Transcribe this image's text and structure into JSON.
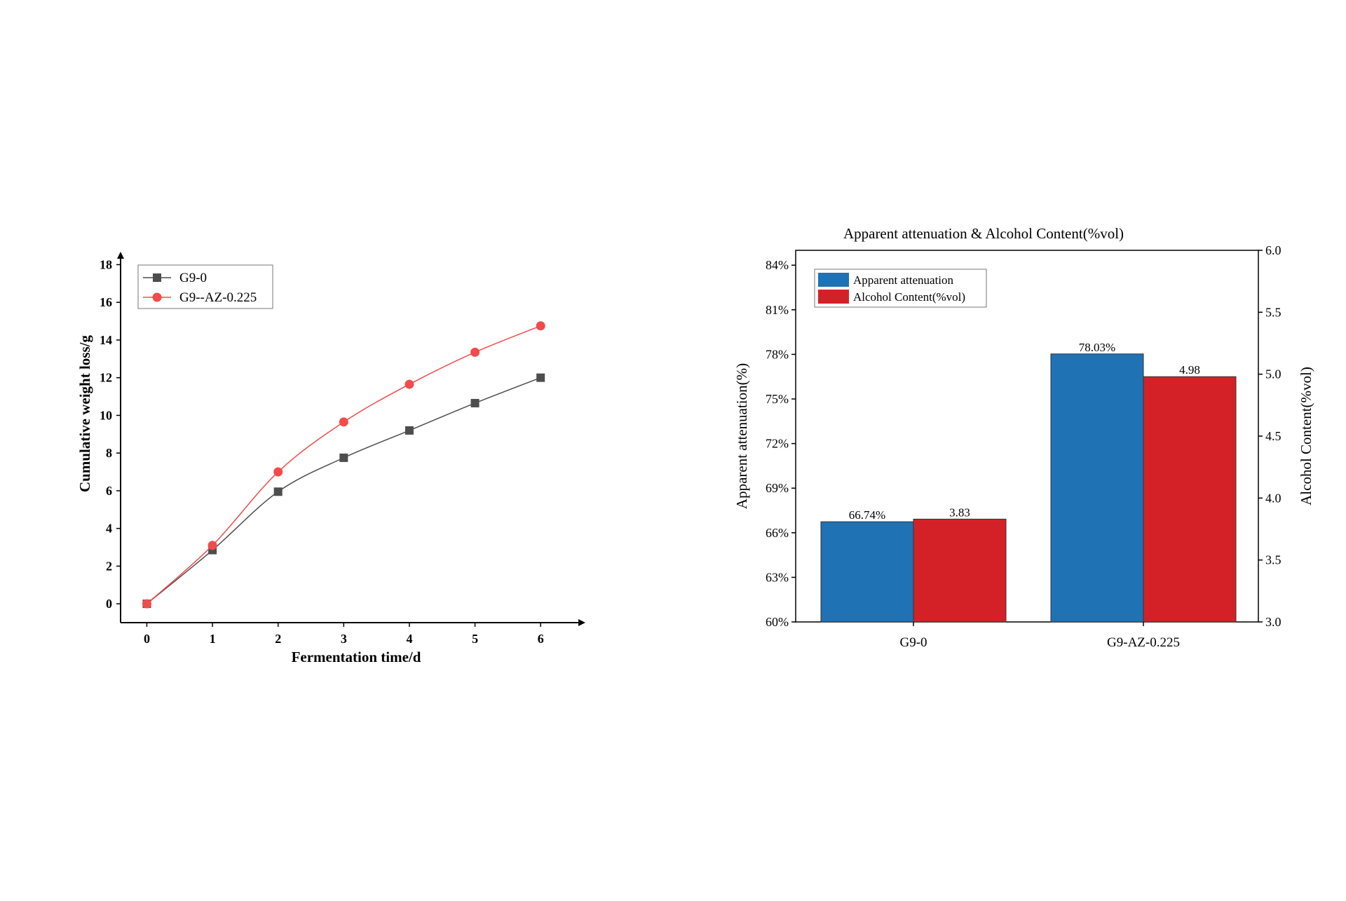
{
  "chart_data": [
    {
      "type": "line",
      "title": "",
      "xlabel": "Fermentation time/d",
      "ylabel": "Cumulative weight loss/g",
      "x": [
        0,
        1,
        2,
        3,
        4,
        5,
        6
      ],
      "xlim": [
        -0.4,
        6.5
      ],
      "ylim": [
        -1,
        18.5
      ],
      "x_ticks": [
        "0",
        "1",
        "2",
        "3",
        "4",
        "5",
        "6"
      ],
      "y_ticks": [
        "0",
        "2",
        "4",
        "6",
        "8",
        "10",
        "12",
        "14",
        "16",
        "18"
      ],
      "legend_position": "top-left",
      "grid": false,
      "series": [
        {
          "name": "G9-0",
          "marker": "square",
          "color": "#4d4d4d",
          "values": [
            0,
            2.85,
            5.95,
            7.75,
            9.2,
            10.65,
            12.0
          ]
        },
        {
          "name": "G9--AZ-0.225",
          "marker": "circle",
          "color": "#f24b4b",
          "values": [
            0,
            3.1,
            7.0,
            9.65,
            11.65,
            13.35,
            14.75
          ]
        }
      ]
    },
    {
      "type": "bar",
      "title": "Apparent attenuation & Alcohol Content(%vol)",
      "xlabel": "",
      "ylabel": "Apparent attenuation(%)",
      "ylabel_right": "Alcohol Content(%vol)",
      "categories": [
        "G9-0",
        "G9-AZ-0.225"
      ],
      "ylim": [
        60,
        85
      ],
      "ylim_right": [
        3.0,
        6.0
      ],
      "y_ticks": [
        "60%",
        "63%",
        "66%",
        "69%",
        "72%",
        "75%",
        "78%",
        "81%",
        "84%"
      ],
      "y_ticks_right": [
        "3.0",
        "3.5",
        "4.0",
        "4.5",
        "5.0",
        "5.5",
        "6.0"
      ],
      "legend_position": "top-left",
      "grid": false,
      "series": [
        {
          "name": "Apparent attenuation",
          "axis": "left",
          "color": "#1f72b4",
          "values": [
            66.74,
            78.03
          ],
          "labels": [
            "66.74%",
            "78.03%"
          ]
        },
        {
          "name": "Alcohol Content(%vol)",
          "axis": "right",
          "color": "#d42128",
          "values": [
            3.83,
            4.98
          ],
          "labels": [
            "3.83",
            "4.98"
          ]
        }
      ]
    }
  ]
}
